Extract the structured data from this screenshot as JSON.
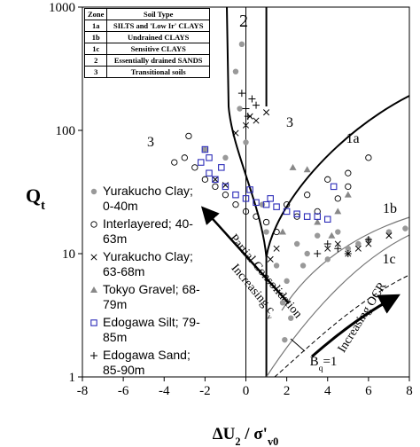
{
  "chart_data": {
    "type": "scatter",
    "xlabel": [
      "ΔU",
      "2",
      " / σ'",
      "v0"
    ],
    "ylabel": [
      "Q",
      "t"
    ],
    "xlim": [
      -8,
      8
    ],
    "xticks": [
      -8,
      -6,
      -4,
      -2,
      0,
      2,
      4,
      6,
      8
    ],
    "ylim": [
      1,
      1000
    ],
    "yticks": [
      1,
      10,
      100,
      1000
    ],
    "yscale": "log",
    "legend": "left",
    "zone_table": {
      "header": [
        "Zone",
        "Soil Type"
      ],
      "rows": [
        [
          "1a",
          "SILTS and 'Low Ir' CLAYS"
        ],
        [
          "1b",
          "Undrained CLAYS"
        ],
        [
          "1c",
          "Sensitive CLAYS"
        ],
        [
          "2",
          "Essentially drained SANDS"
        ],
        [
          "3",
          "Transitional soils"
        ]
      ]
    },
    "annotations": [
      [
        "2"
      ],
      [
        "3"
      ],
      [
        "3"
      ],
      [
        "1a"
      ],
      [
        "1b"
      ],
      [
        "1c"
      ],
      [
        "Partial Consolidation"
      ],
      [
        "Increasing c",
        "v"
      ],
      [
        "Increasing OCR"
      ],
      [
        "B",
        "q",
        "=1"
      ]
    ],
    "series": [
      {
        "name": "Yurakucho Clay; 0-40m",
        "marker": "filled-circle",
        "color": "#999999",
        "x": [
          1.5,
          2,
          1.8,
          2.2,
          1.9,
          2.5,
          3,
          4,
          5,
          6,
          7,
          7.8,
          -0.5,
          -0.3,
          0,
          -1,
          -2,
          1,
          0.8,
          3.5,
          4.5,
          5.5,
          -0.2,
          2.8
        ],
        "values": [
          8,
          6,
          4,
          3,
          2,
          12,
          10,
          9,
          11,
          13,
          15,
          16,
          300,
          150,
          80,
          60,
          70,
          15,
          25,
          14,
          15,
          12,
          500,
          8
        ]
      },
      {
        "name": "Interlayered; 40-63m",
        "marker": "circle",
        "color": "#000000",
        "x": [
          -3,
          -3.5,
          -2.5,
          -2,
          -1.5,
          -1,
          -0.5,
          0,
          0.5,
          1,
          2,
          3,
          4,
          5,
          6,
          3.5,
          4.5,
          5,
          -2.8,
          2.5,
          1.5
        ],
        "values": [
          60,
          55,
          50,
          40,
          35,
          30,
          25,
          22,
          20,
          18,
          25,
          30,
          40,
          35,
          60,
          22,
          28,
          45,
          90,
          20,
          15
        ]
      },
      {
        "name": "Yurakucho Clay; 63-68m",
        "marker": "x",
        "color": "#000000",
        "x": [
          0.5,
          0.2,
          1,
          0,
          -0.5,
          4.5,
          5,
          5.5,
          6,
          7,
          4,
          1.2,
          1.5,
          -1.5,
          -1
        ],
        "values": [
          120,
          130,
          140,
          110,
          95,
          12,
          10,
          11,
          12,
          14,
          11,
          9,
          11,
          40,
          36
        ]
      },
      {
        "name": "Tokyo Gravel; 68-79m",
        "marker": "triangle",
        "color": "#888888",
        "x": [
          2.3,
          3,
          4.5,
          5,
          4.2,
          1.8,
          3.5
        ],
        "values": [
          50,
          48,
          22,
          30,
          14,
          15,
          18
        ]
      },
      {
        "name": "Edogawa Silt; 79-85m",
        "marker": "square",
        "color": "#2b2bb8",
        "x": [
          -2,
          -2.2,
          -1.8,
          -1.5,
          -1,
          -0.5,
          0,
          0.5,
          1,
          1.5,
          2,
          2.5,
          3,
          3.5,
          4,
          4.3,
          -1.8,
          -1.2,
          0.2,
          1.2
        ],
        "values": [
          70,
          55,
          45,
          40,
          35,
          30,
          28,
          26,
          25,
          24,
          22,
          21,
          20,
          20,
          19,
          35,
          60,
          50,
          33,
          28
        ]
      },
      {
        "name": "Edogawa Sand; 85-90m",
        "marker": "plus",
        "color": "#000000",
        "x": [
          0,
          0.5,
          0.1,
          -0.2,
          0.3,
          5,
          4,
          6,
          3.5,
          4.5
        ],
        "values": [
          150,
          160,
          130,
          200,
          180,
          10,
          12,
          13,
          10,
          11
        ]
      }
    ]
  }
}
